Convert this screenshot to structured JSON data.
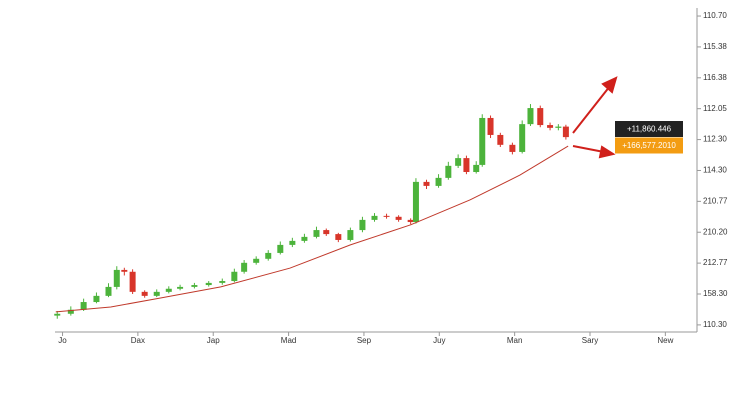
{
  "chart_data": {
    "type": "candlestick",
    "x_labels": [
      "Jo",
      "Dax",
      "Jap",
      "Mad",
      "Sep",
      "Juy",
      "Man",
      "Sary",
      "New"
    ],
    "y_labels": [
      "110.30",
      "158.30",
      "212.77",
      "210.20",
      "210.77",
      "114.30",
      "112.30",
      "112.05",
      "116.38",
      "115.38",
      "110.70"
    ],
    "xlim": [
      -0.1,
      8.42
    ],
    "ylim": [
      -0.23,
      10.26
    ],
    "up_color": "#4cb33b",
    "down_color": "#d8352a",
    "candles": {
      "x": [
        -0.07,
        0.11,
        0.28,
        0.45,
        0.61,
        0.72,
        0.82,
        0.93,
        1.09,
        1.25,
        1.41,
        1.56,
        1.75,
        1.94,
        2.12,
        2.28,
        2.41,
        2.57,
        2.73,
        2.89,
        3.05,
        3.21,
        3.37,
        3.5,
        3.66,
        3.82,
        3.98,
        4.14,
        4.3,
        4.46,
        4.62,
        4.69,
        4.83,
        4.99,
        5.12,
        5.25,
        5.36,
        5.49,
        5.57,
        5.68,
        5.81,
        5.97,
        6.1,
        6.21,
        6.34,
        6.47,
        6.58,
        6.68
      ],
      "open": [
        0.3,
        0.36,
        0.49,
        0.74,
        0.94,
        1.23,
        1.78,
        1.72,
        1.07,
        0.94,
        1.07,
        1.17,
        1.23,
        1.29,
        1.36,
        1.42,
        1.72,
        2.01,
        2.14,
        2.33,
        2.59,
        2.72,
        2.85,
        3.07,
        2.94,
        2.75,
        3.07,
        3.4,
        3.53,
        3.5,
        3.4,
        3.33,
        4.63,
        4.5,
        4.76,
        5.15,
        5.4,
        4.95,
        5.18,
        6.7,
        6.15,
        5.83,
        5.6,
        6.5,
        7.02,
        6.47,
        6.38,
        6.42
      ],
      "high": [
        0.45,
        0.6,
        0.85,
        1.05,
        1.35,
        1.9,
        1.85,
        1.8,
        1.12,
        1.15,
        1.25,
        1.3,
        1.36,
        1.42,
        1.5,
        1.82,
        2.1,
        2.22,
        2.42,
        2.7,
        2.82,
        2.95,
        3.18,
        3.12,
        2.98,
        3.15,
        3.5,
        3.62,
        3.6,
        3.55,
        3.45,
        4.75,
        4.7,
        4.88,
        5.28,
        5.52,
        5.48,
        5.3,
        6.82,
        6.78,
        6.22,
        5.9,
        6.62,
        7.15,
        7.1,
        6.55,
        6.5,
        6.48
      ],
      "low": [
        0.2,
        0.3,
        0.45,
        0.7,
        0.9,
        1.15,
        1.6,
        1.0,
        0.88,
        0.9,
        1.02,
        1.12,
        1.18,
        1.24,
        1.3,
        1.38,
        1.66,
        1.95,
        2.08,
        2.28,
        2.52,
        2.66,
        2.8,
        2.88,
        2.68,
        2.7,
        3.0,
        3.34,
        3.44,
        3.34,
        3.26,
        3.28,
        4.4,
        4.44,
        4.7,
        5.08,
        4.88,
        4.9,
        5.12,
        6.05,
        5.76,
        5.52,
        5.55,
        6.44,
        6.4,
        6.3,
        6.3,
        6.0
      ],
      "close": [
        0.36,
        0.49,
        0.74,
        0.94,
        1.23,
        1.78,
        1.72,
        1.07,
        0.94,
        1.07,
        1.17,
        1.23,
        1.29,
        1.36,
        1.42,
        1.72,
        2.01,
        2.14,
        2.33,
        2.59,
        2.72,
        2.85,
        3.07,
        2.94,
        2.75,
        3.07,
        3.4,
        3.53,
        3.5,
        3.4,
        3.33,
        4.63,
        4.5,
        4.76,
        5.15,
        5.4,
        4.95,
        5.18,
        6.7,
        6.15,
        5.83,
        5.6,
        6.5,
        7.02,
        6.47,
        6.38,
        6.42,
        6.08
      ]
    },
    "trend": {
      "color": "#c0392b",
      "x": [
        -0.09,
        0.64,
        1.3,
        2.1,
        3.02,
        3.82,
        4.62,
        5.41,
        6.07,
        6.71
      ],
      "values": [
        0.42,
        0.58,
        0.87,
        1.23,
        1.84,
        2.59,
        3.24,
        4.05,
        4.85,
        5.79
      ]
    },
    "annotations": [
      {
        "text": "+11,860.446",
        "color": "#222222"
      },
      {
        "text": "+166,577.2010",
        "color": "#f39c12"
      }
    ]
  }
}
